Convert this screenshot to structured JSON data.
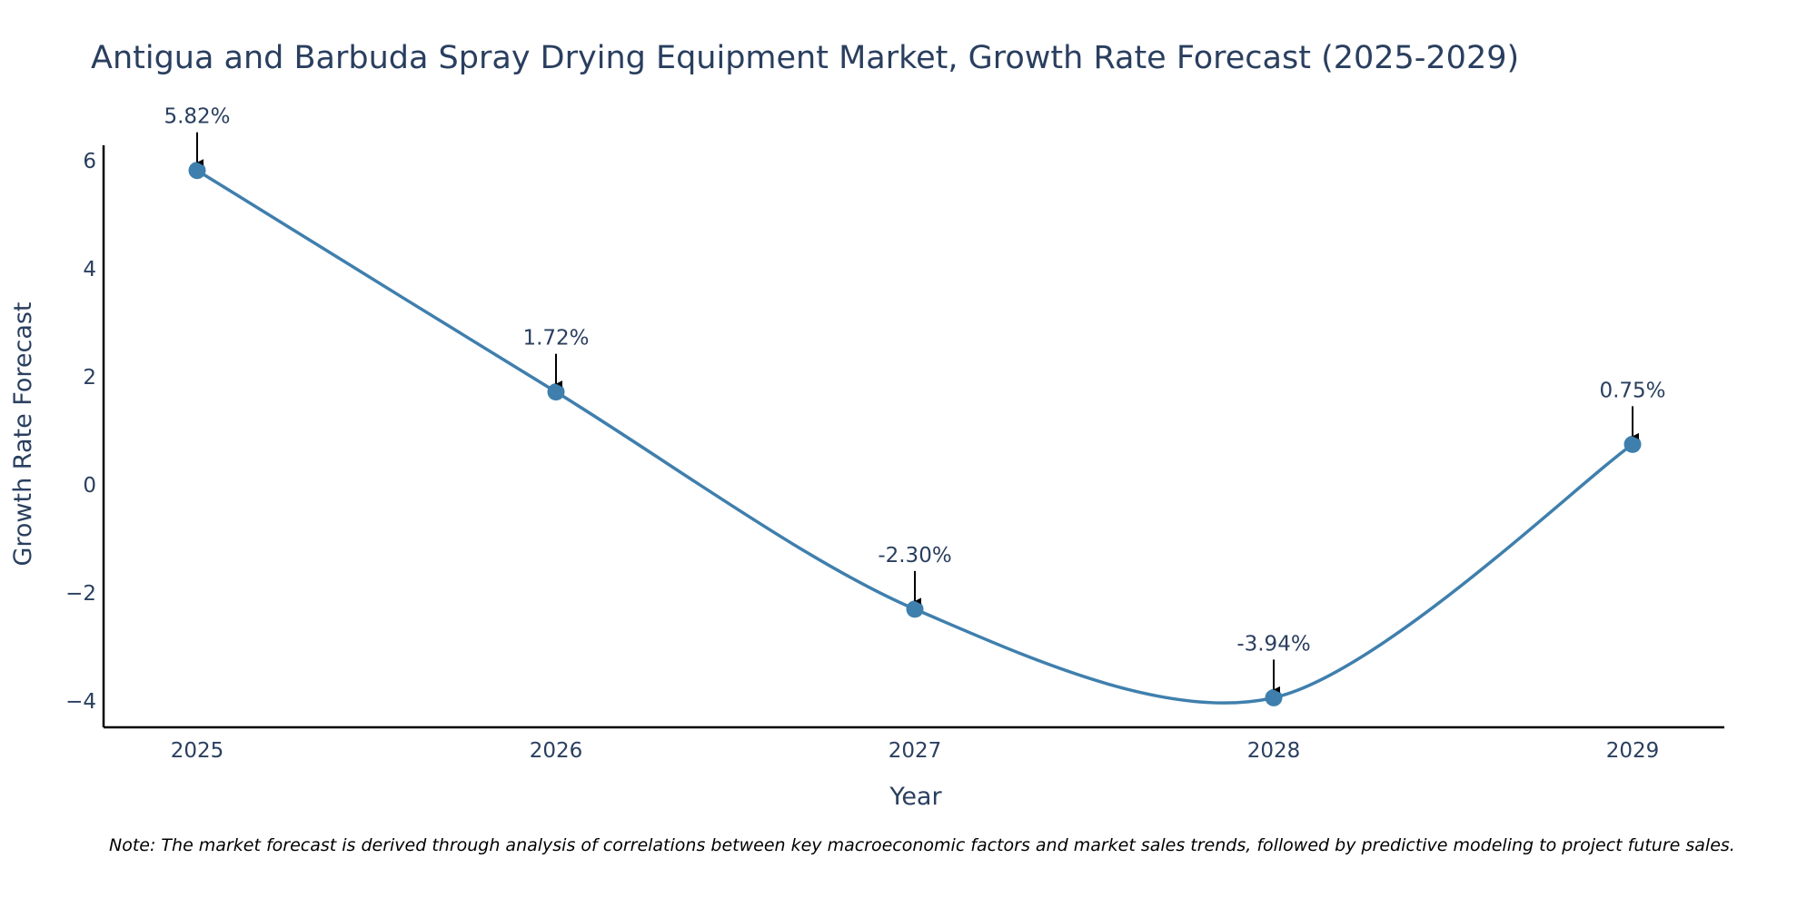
{
  "chart_data": {
    "type": "line",
    "title": "Antigua and Barbuda Spray Drying Equipment Market, Growth Rate Forecast (2025-2029)",
    "xlabel": "Year",
    "ylabel": "Growth Rate Forecast",
    "categories": [
      "2025",
      "2026",
      "2027",
      "2028",
      "2029"
    ],
    "series": [
      {
        "name": "Growth Rate Forecast",
        "values": [
          5.82,
          1.72,
          -2.3,
          -3.94,
          0.75
        ]
      }
    ],
    "data_labels": [
      "5.82%",
      "1.72%",
      "-2.30%",
      "-3.94%",
      "0.75%"
    ],
    "y_ticks": [
      6,
      4,
      2,
      0,
      -2,
      -4
    ],
    "y_tick_labels": [
      "6",
      "4",
      "2",
      "0",
      "−2",
      "−4"
    ],
    "ylim": [
      -4.45,
      6.3
    ],
    "grid": false,
    "line_color": "#3f7fad",
    "annotation_color": "#000000"
  },
  "note": "Note: The market forecast is derived through analysis of correlations between key macroeconomic factors and market sales trends, followed by predictive modeling to project future sales."
}
